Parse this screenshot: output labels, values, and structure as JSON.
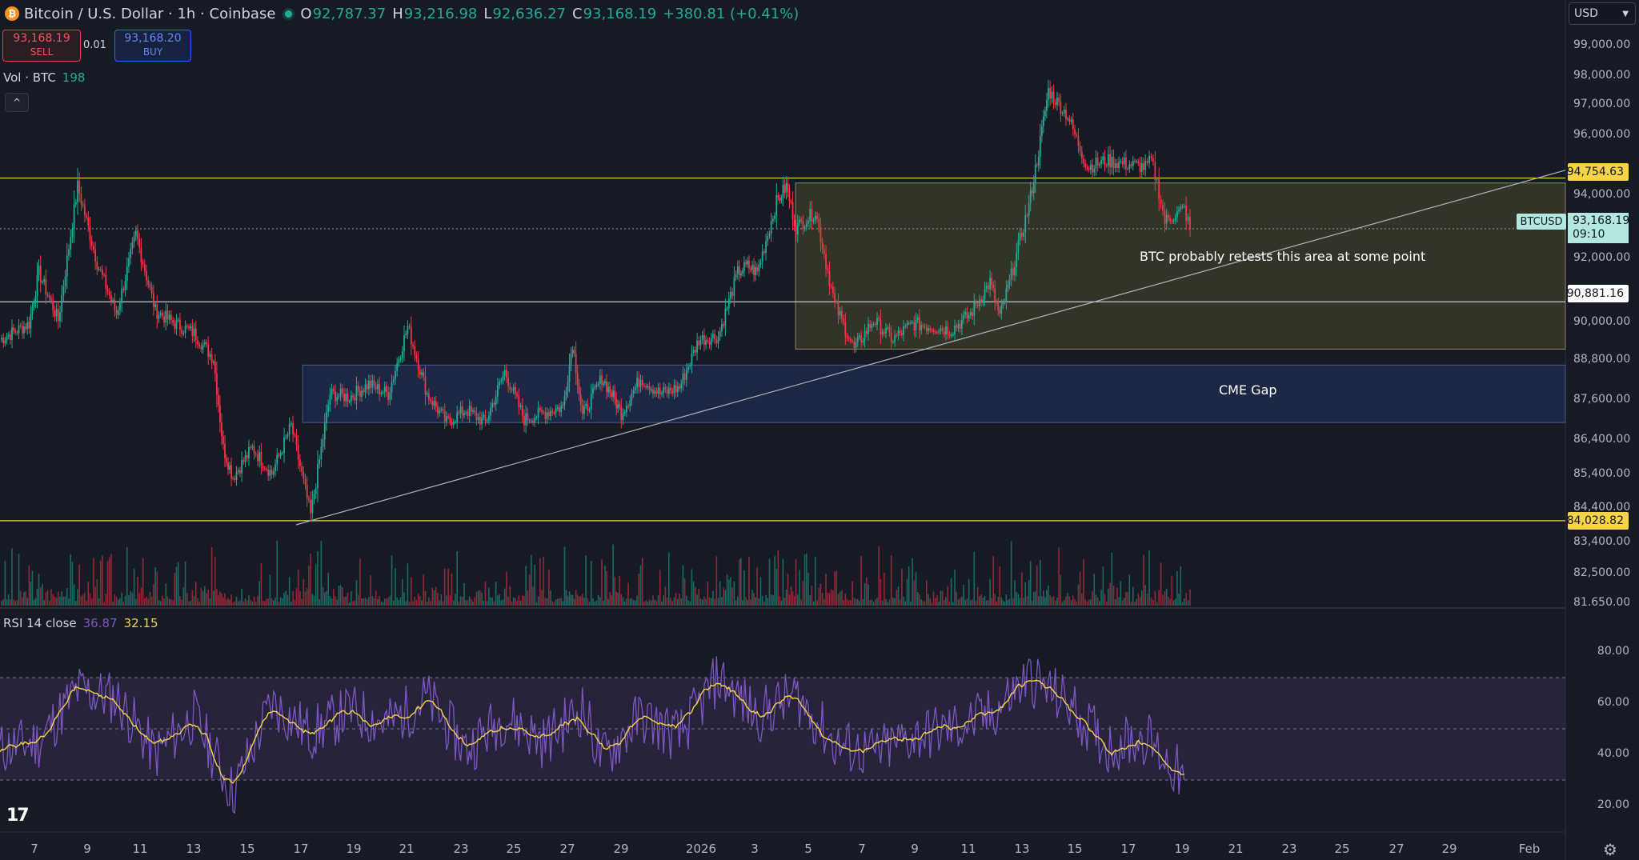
{
  "header": {
    "coin_glyph": "₿",
    "symbol_title": "Bitcoin / U.S. Dollar · 1h · Coinbase",
    "o_label": "O",
    "o_value": "92,787.37",
    "h_label": "H",
    "h_value": "93,216.98",
    "l_label": "L",
    "l_value": "92,636.27",
    "c_label": "C",
    "c_value": "93,168.19",
    "change": "+380.81 (+0.41%)"
  },
  "trade": {
    "sell_price": "93,168.19",
    "sell_label": "SELL",
    "quantity": "0.01",
    "buy_price": "93,168.20",
    "buy_label": "BUY"
  },
  "volume": {
    "label": "Vol · BTC",
    "value": "198"
  },
  "collapse_icon": "^",
  "rsi": {
    "label": "RSI 14 close",
    "value1": "36.87",
    "value2": "32.15",
    "levels": [
      70,
      50,
      30
    ]
  },
  "currency_select": {
    "value": "USD",
    "icon": "chevron-down-icon"
  },
  "price_axis": {
    "main_ticks": [
      "99,000.00",
      "98,000.00",
      "97,000.00",
      "96,000.00",
      "94,000.00",
      "92,000.00",
      "90,000.00",
      "88,800.00",
      "87,600.00",
      "86,400.00",
      "85,400.00",
      "84,400.00",
      "83,400.00",
      "82,500.00",
      "81,650.00"
    ],
    "rsi_ticks": [
      "80.00",
      "60.00",
      "40.00",
      "20.00"
    ]
  },
  "price_labels": {
    "upper_resistance": "94,754.63",
    "current_symbol": "BTCUSD",
    "current_price": "93,168.19",
    "countdown": "09:10",
    "mid_level": "90,881.16",
    "lower_support": "84,028.82"
  },
  "annotations": {
    "retest": "BTC probably retests this area at some point",
    "cme_gap": "CME Gap"
  },
  "time_axis": [
    "7",
    "9",
    "11",
    "13",
    "15",
    "17",
    "19",
    "21",
    "23",
    "25",
    "27",
    "29",
    "2026",
    "3",
    "5",
    "7",
    "9",
    "11",
    "13",
    "15",
    "17",
    "19",
    "21",
    "23",
    "25",
    "27",
    "29",
    "Feb"
  ],
  "chart_data": {
    "type": "candlestick",
    "interval": "1h",
    "price_range": [
      81650,
      99500
    ],
    "horizontal_levels": [
      94754.63,
      90881.16,
      84028.82
    ],
    "current_price": 93168.19,
    "zones": [
      {
        "name": "retest zone",
        "y_range": [
          89400,
          94600
        ]
      },
      {
        "name": "CME Gap",
        "y_range": [
          87100,
          88900
        ]
      }
    ],
    "trendline_price_range": [
      83900,
      95000
    ],
    "price_path": [
      [
        0,
        89700
      ],
      [
        1.5,
        90200
      ],
      [
        2,
        91800
      ],
      [
        3,
        90300
      ],
      [
        4,
        94500
      ],
      [
        5,
        92100
      ],
      [
        6,
        90500
      ],
      [
        7,
        93000
      ],
      [
        8,
        90600
      ],
      [
        9,
        90200
      ],
      [
        10,
        89900
      ],
      [
        11,
        89100
      ],
      [
        11.5,
        86300
      ],
      [
        12,
        85400
      ],
      [
        13,
        86300
      ],
      [
        14,
        85500
      ],
      [
        15,
        87000
      ],
      [
        16,
        84200
      ],
      [
        17,
        88000
      ],
      [
        18,
        87900
      ],
      [
        19,
        88300
      ],
      [
        20,
        88000
      ],
      [
        21,
        90100
      ],
      [
        22,
        88000
      ],
      [
        23,
        87100
      ],
      [
        24,
        87500
      ],
      [
        25,
        87100
      ],
      [
        26,
        88700
      ],
      [
        27,
        87200
      ],
      [
        28,
        87400
      ],
      [
        29,
        87600
      ],
      [
        29.5,
        89600
      ],
      [
        30,
        87300
      ],
      [
        31,
        88500
      ],
      [
        31.5,
        88000
      ],
      [
        32,
        87400
      ],
      [
        33,
        88500
      ],
      [
        34,
        88000
      ],
      [
        35,
        88200
      ],
      [
        36,
        89700
      ],
      [
        37,
        89800
      ],
      [
        38,
        91800
      ],
      [
        38.5,
        92000
      ],
      [
        39,
        91800
      ],
      [
        40,
        94000
      ],
      [
        40.5,
        94500
      ],
      [
        41,
        93200
      ],
      [
        42,
        93700
      ],
      [
        43,
        90800
      ],
      [
        44,
        89400
      ],
      [
        45,
        90300
      ],
      [
        46,
        89700
      ],
      [
        47,
        90200
      ],
      [
        48,
        90100
      ],
      [
        49,
        90000
      ],
      [
        50,
        90500
      ],
      [
        51,
        91500
      ],
      [
        51.5,
        90400
      ],
      [
        52,
        91500
      ],
      [
        53,
        93900
      ],
      [
        53.5,
        95600
      ],
      [
        54,
        97500
      ],
      [
        55,
        96700
      ],
      [
        56,
        95100
      ],
      [
        57,
        95300
      ],
      [
        58,
        95200
      ],
      [
        59,
        95100
      ],
      [
        59.3,
        95300
      ],
      [
        59.6,
        94600
      ],
      [
        60,
        93400
      ],
      [
        61,
        93800
      ],
      [
        61.3,
        93168
      ]
    ],
    "rsi_path": [
      [
        0,
        42
      ],
      [
        2,
        45
      ],
      [
        4,
        65
      ],
      [
        6,
        62
      ],
      [
        8,
        40
      ],
      [
        10,
        55
      ],
      [
        12,
        25
      ],
      [
        14,
        60
      ],
      [
        16,
        48
      ],
      [
        18,
        57
      ],
      [
        20,
        52
      ],
      [
        22,
        62
      ],
      [
        24,
        42
      ],
      [
        26,
        55
      ],
      [
        28,
        45
      ],
      [
        30,
        58
      ],
      [
        31,
        38
      ],
      [
        33,
        55
      ],
      [
        35,
        47
      ],
      [
        37,
        70
      ],
      [
        39,
        55
      ],
      [
        41,
        63
      ],
      [
        43,
        44
      ],
      [
        45,
        40
      ],
      [
        47,
        47
      ],
      [
        49,
        50
      ],
      [
        51,
        55
      ],
      [
        53,
        70
      ],
      [
        55,
        60
      ],
      [
        57,
        43
      ],
      [
        59,
        47
      ],
      [
        61,
        30
      ]
    ],
    "x_label_days": [
      "7",
      "9",
      "11",
      "13",
      "15",
      "17",
      "19",
      "21",
      "23",
      "25",
      "27",
      "29",
      "2026",
      "3",
      "5",
      "7",
      "9",
      "11",
      "13",
      "15",
      "17",
      "19",
      "21",
      "23",
      "25",
      "27",
      "29",
      "Feb"
    ]
  },
  "colors": {
    "background": "#161a25",
    "up": "#22ab94",
    "down": "#f23645",
    "level_line": "#f5d547",
    "zone_retest": "#4a4b2c",
    "zone_cme": "#1f2c4d",
    "rsi_line": "#7e57c2",
    "rsi_ma": "#f5d547",
    "rsi_band": "#2a2541"
  },
  "logo": "TradingView",
  "settings_icon": "gear-icon"
}
